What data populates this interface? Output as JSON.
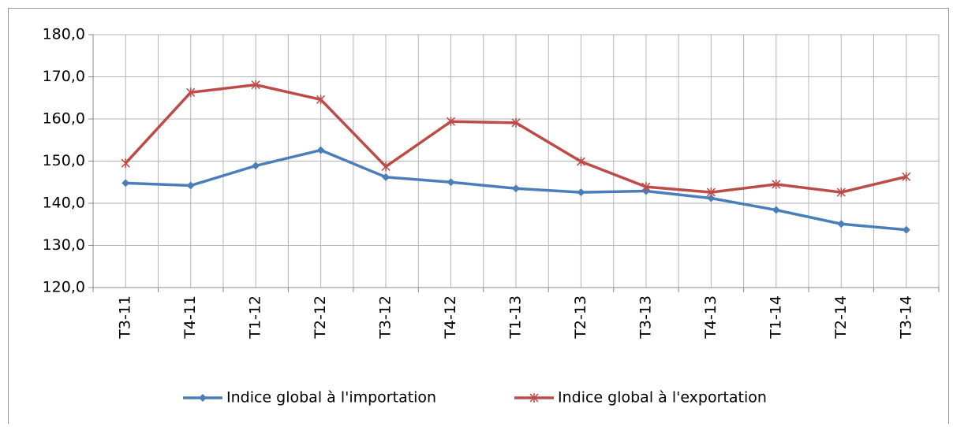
{
  "chart_data": {
    "type": "line",
    "categories": [
      "T3-11",
      "T4-11",
      "T1-12",
      "T2-12",
      "T3-12",
      "T4-12",
      "T1-13",
      "T2-13",
      "T3-13",
      "T4-13",
      "T1-14",
      "T2-14",
      "T3-14"
    ],
    "series": [
      {
        "name": "Indice global à l'importation",
        "color": "#4a7ebb",
        "marker": "diamond",
        "values": [
          144.8,
          144.2,
          148.9,
          152.6,
          146.2,
          145.0,
          143.5,
          142.6,
          142.9,
          141.2,
          138.4,
          135.1,
          133.7
        ]
      },
      {
        "name": "Indice global à l'exportation",
        "color": "#be4b48",
        "marker": "star",
        "values": [
          149.5,
          166.3,
          168.1,
          164.6,
          148.7,
          159.4,
          159.1,
          149.9,
          143.9,
          142.6,
          144.5,
          142.6,
          146.3
        ]
      }
    ],
    "ylim": [
      120,
      180
    ],
    "yticks": [
      {
        "value": 120,
        "label": "120,0"
      },
      {
        "value": 130,
        "label": "130,0"
      },
      {
        "value": 140,
        "label": "140,0"
      },
      {
        "value": 150,
        "label": "150,0"
      },
      {
        "value": 160,
        "label": "160,0"
      },
      {
        "value": 170,
        "label": "170,0"
      },
      {
        "value": 180,
        "label": "180,0"
      }
    ],
    "grid": true,
    "legend": "bottom"
  }
}
